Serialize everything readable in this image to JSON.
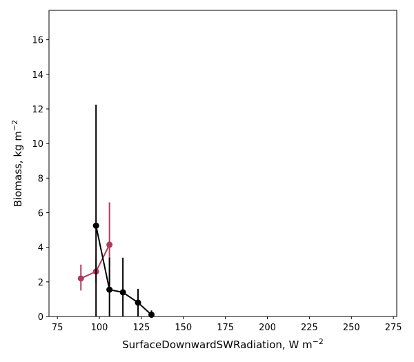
{
  "chart_data": {
    "type": "line",
    "xlabel": "SurfaceDownwardSWRadiation,  W m",
    "xlabel_sup": "−2",
    "ylabel": "Biomass,  kg m",
    "ylabel_sup": "−2",
    "xlim": [
      70,
      277
    ],
    "ylim": [
      0,
      17.7
    ],
    "xticks": [
      75,
      100,
      125,
      150,
      175,
      200,
      225,
      250,
      275
    ],
    "yticks": [
      0,
      2,
      4,
      6,
      8,
      10,
      12,
      14,
      16
    ],
    "grid": false,
    "series": [
      {
        "color": "#b03a5e",
        "x": [
          89,
          98,
          106
        ],
        "y": [
          2.2,
          2.6,
          4.15
        ],
        "err_low": [
          1.5,
          1.95,
          1.8
        ],
        "err_high": [
          3.0,
          3.35,
          6.6
        ]
      },
      {
        "color": "#000000",
        "x": [
          98,
          106,
          114,
          123,
          131
        ],
        "y": [
          5.25,
          1.55,
          1.4,
          0.8,
          0.1
        ],
        "err_low": [
          0,
          0,
          0,
          0,
          0
        ],
        "err_high": [
          12.25,
          3.4,
          3.4,
          1.6,
          0.35
        ]
      }
    ]
  }
}
